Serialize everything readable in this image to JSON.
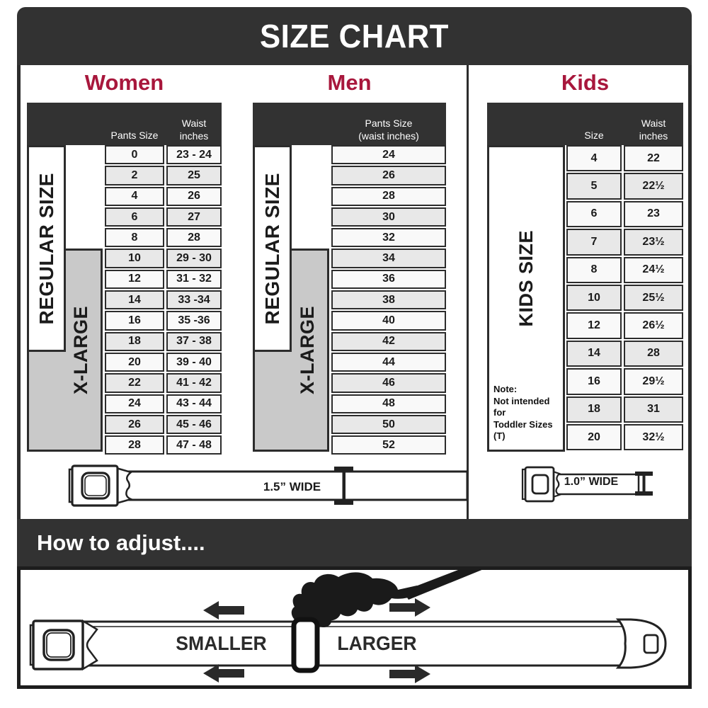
{
  "title": "SIZE CHART",
  "colors": {
    "accent": "#a8173c",
    "dark_bar": "#323232",
    "xlarge_gray": "#c9c9c9",
    "row_alt": "#e8e8e8"
  },
  "women": {
    "heading": "Women",
    "col1_header": "Pants Size",
    "col2_header_line1": "Waist",
    "col2_header_line2": "inches",
    "regular_label": "REGULAR SIZE",
    "xlarge_label": "X-LARGE",
    "rows": [
      {
        "size": "0",
        "waist": "23 - 24"
      },
      {
        "size": "2",
        "waist": "25"
      },
      {
        "size": "4",
        "waist": "26"
      },
      {
        "size": "6",
        "waist": "27"
      },
      {
        "size": "8",
        "waist": "28"
      },
      {
        "size": "10",
        "waist": "29 - 30"
      },
      {
        "size": "12",
        "waist": "31 - 32"
      },
      {
        "size": "14",
        "waist": "33 -34"
      },
      {
        "size": "16",
        "waist": "35 -36"
      },
      {
        "size": "18",
        "waist": "37 - 38"
      },
      {
        "size": "20",
        "waist": "39 - 40"
      },
      {
        "size": "22",
        "waist": "41 - 42"
      },
      {
        "size": "24",
        "waist": "43 - 44"
      },
      {
        "size": "26",
        "waist": "45 - 46"
      },
      {
        "size": "28",
        "waist": "47 - 48"
      }
    ]
  },
  "men": {
    "heading": "Men",
    "col1_header_line1": "Pants Size",
    "col1_header_line2": "(waist inches)",
    "regular_label": "REGULAR SIZE",
    "xlarge_label": "X-LARGE",
    "rows": [
      "24",
      "26",
      "28",
      "30",
      "32",
      "34",
      "36",
      "38",
      "40",
      "42",
      "44",
      "46",
      "48",
      "50",
      "52"
    ]
  },
  "kids": {
    "heading": "Kids",
    "col1_header": "Size",
    "col2_header_line1": "Waist",
    "col2_header_line2": "inches",
    "side_label": "KIDS SIZE",
    "note_title": "Note:",
    "note_line1": "Not intended for",
    "note_line2": "Toddler Sizes (T)",
    "rows": [
      {
        "size": "4",
        "waist": "22"
      },
      {
        "size": "5",
        "waist": "22½"
      },
      {
        "size": "6",
        "waist": "23"
      },
      {
        "size": "7",
        "waist": "23½"
      },
      {
        "size": "8",
        "waist": "24½"
      },
      {
        "size": "10",
        "waist": "25½"
      },
      {
        "size": "12",
        "waist": "26½"
      },
      {
        "size": "14",
        "waist": "28"
      },
      {
        "size": "16",
        "waist": "29½"
      },
      {
        "size": "18",
        "waist": "31"
      },
      {
        "size": "20",
        "waist": "32½"
      }
    ]
  },
  "belts": {
    "adult_width_label": "1.5” WIDE",
    "kids_width_label": "1.0” WIDE"
  },
  "how_to": {
    "title": "How to adjust....",
    "smaller_label": "SMALLER",
    "larger_label": "LARGER"
  }
}
